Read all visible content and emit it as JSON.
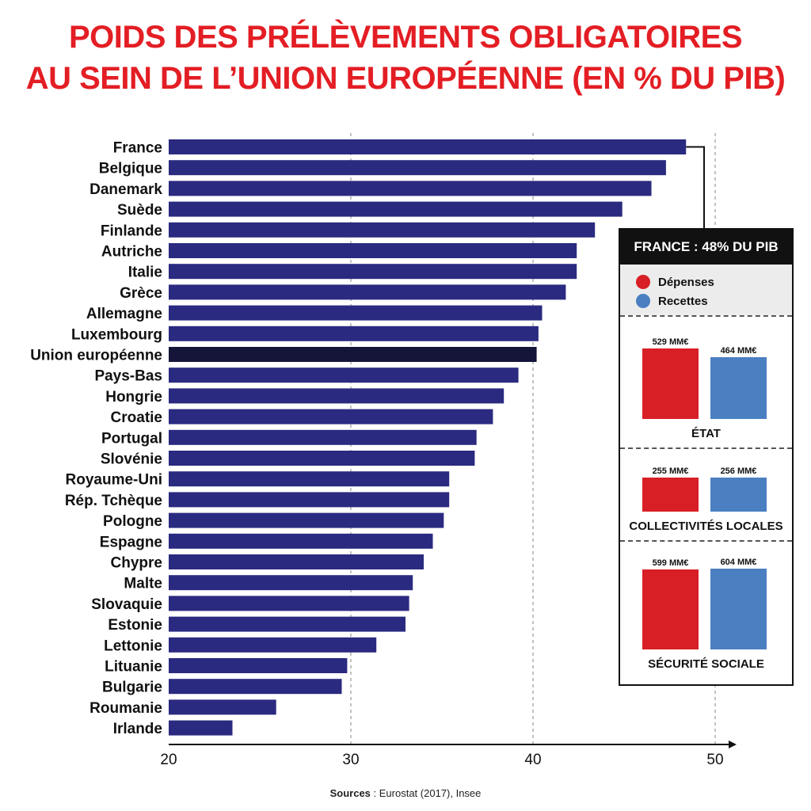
{
  "title_line1": "POIDS DES PRÉLÈVEMENTS OBLIGATOIRES",
  "title_line2": "AU SEIN DE L’UNION EUROPÉENNE (EN % DU PIB)",
  "sources_label": "Sources",
  "sources_text": " : Eurostat (2017), Insee",
  "colors": {
    "title": "#e31e24",
    "bar": "#2a2a80",
    "eu_bar": "#15153a",
    "depenses": "#d81f26",
    "recettes": "#4a7fc1"
  },
  "chart_data": {
    "type": "bar",
    "orientation": "horizontal",
    "title": "POIDS DES PRÉLÈVEMENTS OBLIGATOIRES AU SEIN DE L’UNION EUROPÉENNE (EN % DU PIB)",
    "xlim": [
      20,
      50
    ],
    "xticks": [
      20,
      30,
      40,
      50
    ],
    "grid": "dashed vertical at 30, 40, 50",
    "categories": [
      "France",
      "Belgique",
      "Danemark",
      "Suède",
      "Finlande",
      "Autriche",
      "Italie",
      "Grèce",
      "Allemagne",
      "Luxembourg",
      "Union européenne",
      "Pays-Bas",
      "Hongrie",
      "Croatie",
      "Portugal",
      "Slovénie",
      "Royaume-Uni",
      "Rép. Tchèque",
      "Pologne",
      "Espagne",
      "Chypre",
      "Malte",
      "Slovaquie",
      "Estonie",
      "Lettonie",
      "Lituanie",
      "Bulgarie",
      "Roumanie",
      "Irlande"
    ],
    "values": [
      48.4,
      47.3,
      46.5,
      44.9,
      43.4,
      42.4,
      42.4,
      41.8,
      40.5,
      40.3,
      40.2,
      39.2,
      38.4,
      37.8,
      36.9,
      36.8,
      35.4,
      35.4,
      35.1,
      34.5,
      34.0,
      33.4,
      33.2,
      33.0,
      31.4,
      29.8,
      29.5,
      25.9,
      23.5
    ],
    "highlight": "Union européenne"
  },
  "inset": {
    "header": "FRANCE : 48% DU PIB",
    "legend": [
      {
        "label": "Dépenses",
        "color": "#d81f26"
      },
      {
        "label": "Recettes",
        "color": "#4a7fc1"
      }
    ],
    "sections": [
      {
        "name": "ÉTAT",
        "depenses_label": "529 MM€",
        "recettes_label": "464 MM€",
        "depenses": 529,
        "recettes": 464
      },
      {
        "name": "COLLECTIVITÉS LOCALES",
        "depenses_label": "255 MM€",
        "recettes_label": "256 MM€",
        "depenses": 255,
        "recettes": 256
      },
      {
        "name": "SÉCURITÉ SOCIALE",
        "depenses_label": "599 MM€",
        "recettes_label": "604 MM€",
        "depenses": 599,
        "recettes": 604
      }
    ]
  }
}
